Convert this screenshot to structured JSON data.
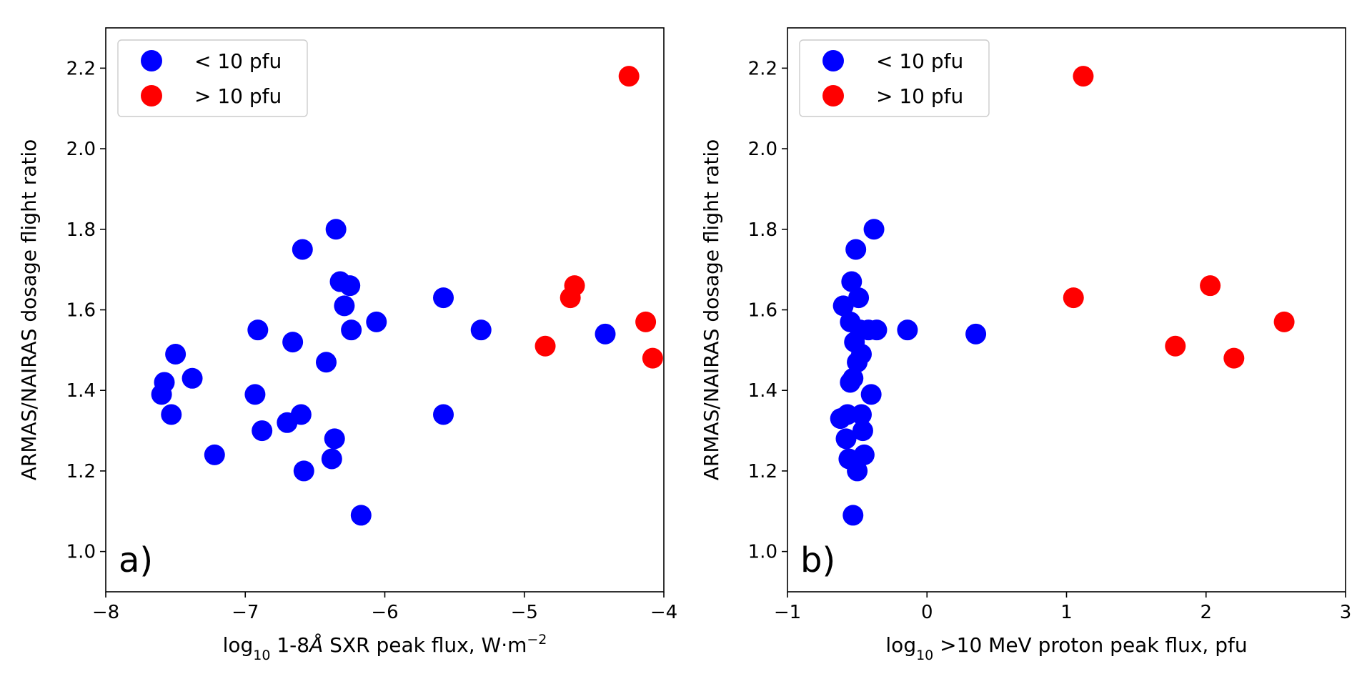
{
  "chart_data": [
    {
      "type": "scatter",
      "panel_label": "a)",
      "xlabel": {
        "prefix": "log",
        "sub": "10",
        "main": " 1-8",
        "unit_angstrom": "Å",
        "rest": " SXR peak flux, W·m",
        "sup": "−2"
      },
      "ylabel": "ARMAS/NAIRAS dosage flight ratio",
      "xlim": [
        -8,
        -4
      ],
      "ylim": [
        0.9,
        2.3
      ],
      "xticks": [
        -8,
        -7,
        -6,
        -5,
        -4
      ],
      "xtick_labels": [
        "−8",
        "−7",
        "−6",
        "−5",
        "−4"
      ],
      "yticks": [
        1.0,
        1.2,
        1.4,
        1.6,
        1.8,
        2.0,
        2.2
      ],
      "ytick_labels": [
        "1.0",
        "1.2",
        "1.4",
        "1.6",
        "1.8",
        "2.0",
        "2.2"
      ],
      "legend_position": "top-left",
      "grid": false,
      "series": [
        {
          "name": "< 10 pfu",
          "color": "#0000ff",
          "points": [
            [
              -7.6,
              1.39
            ],
            [
              -7.58,
              1.42
            ],
            [
              -7.53,
              1.34
            ],
            [
              -7.5,
              1.49
            ],
            [
              -7.38,
              1.43
            ],
            [
              -7.22,
              1.24
            ],
            [
              -6.93,
              1.39
            ],
            [
              -6.91,
              1.55
            ],
            [
              -6.88,
              1.3
            ],
            [
              -6.7,
              1.32
            ],
            [
              -6.66,
              1.52
            ],
            [
              -6.6,
              1.34
            ],
            [
              -6.59,
              1.75
            ],
            [
              -6.58,
              1.2
            ],
            [
              -6.42,
              1.47
            ],
            [
              -6.38,
              1.23
            ],
            [
              -6.36,
              1.28
            ],
            [
              -6.35,
              1.8
            ],
            [
              -6.32,
              1.67
            ],
            [
              -6.29,
              1.61
            ],
            [
              -6.25,
              1.66
            ],
            [
              -6.24,
              1.55
            ],
            [
              -6.17,
              1.09
            ],
            [
              -6.06,
              1.57
            ],
            [
              -5.58,
              1.63
            ],
            [
              -5.58,
              1.34
            ],
            [
              -5.31,
              1.55
            ],
            [
              -4.42,
              1.54
            ]
          ]
        },
        {
          "name": "> 10 pfu",
          "color": "#ff0000",
          "points": [
            [
              -4.85,
              1.51
            ],
            [
              -4.67,
              1.63
            ],
            [
              -4.64,
              1.66
            ],
            [
              -4.25,
              2.18
            ],
            [
              -4.13,
              1.57
            ],
            [
              -4.08,
              1.48
            ]
          ]
        }
      ]
    },
    {
      "type": "scatter",
      "panel_label": "b)",
      "xlabel": {
        "prefix": "log",
        "sub": "10",
        "main": " >10 MeV proton peak flux, pfu"
      },
      "ylabel": "ARMAS/NAIRAS dosage flight ratio",
      "xlim": [
        -1,
        3
      ],
      "ylim": [
        0.9,
        2.3
      ],
      "xticks": [
        -1,
        0,
        1,
        2,
        3
      ],
      "xtick_labels": [
        "−1",
        "0",
        "1",
        "2",
        "3"
      ],
      "yticks": [
        1.0,
        1.2,
        1.4,
        1.6,
        1.8,
        2.0,
        2.2
      ],
      "ytick_labels": [
        "1.0",
        "1.2",
        "1.4",
        "1.6",
        "1.8",
        "2.0",
        "2.2"
      ],
      "legend_position": "top-left",
      "grid": false,
      "series": [
        {
          "name": "< 10 pfu",
          "color": "#0000ff",
          "points": [
            [
              -0.62,
              1.33
            ],
            [
              -0.6,
              1.61
            ],
            [
              -0.58,
              1.28
            ],
            [
              -0.57,
              1.34
            ],
            [
              -0.56,
              1.23
            ],
            [
              -0.55,
              1.42
            ],
            [
              -0.55,
              1.57
            ],
            [
              -0.54,
              1.67
            ],
            [
              -0.53,
              1.09
            ],
            [
              -0.53,
              1.43
            ],
            [
              -0.52,
              1.52
            ],
            [
              -0.51,
              1.75
            ],
            [
              -0.5,
              1.47
            ],
            [
              -0.5,
              1.2
            ],
            [
              -0.49,
              1.63
            ],
            [
              -0.48,
              1.55
            ],
            [
              -0.47,
              1.49
            ],
            [
              -0.47,
              1.34
            ],
            [
              -0.46,
              1.3
            ],
            [
              -0.45,
              1.24
            ],
            [
              -0.42,
              1.55
            ],
            [
              -0.4,
              1.39
            ],
            [
              -0.38,
              1.8
            ],
            [
              -0.36,
              1.55
            ],
            [
              -0.14,
              1.55
            ],
            [
              0.35,
              1.54
            ]
          ]
        },
        {
          "name": "> 10 pfu",
          "color": "#ff0000",
          "points": [
            [
              1.05,
              1.63
            ],
            [
              1.12,
              2.18
            ],
            [
              1.78,
              1.51
            ],
            [
              2.03,
              1.66
            ],
            [
              2.2,
              1.48
            ],
            [
              2.56,
              1.57
            ]
          ]
        }
      ]
    }
  ]
}
